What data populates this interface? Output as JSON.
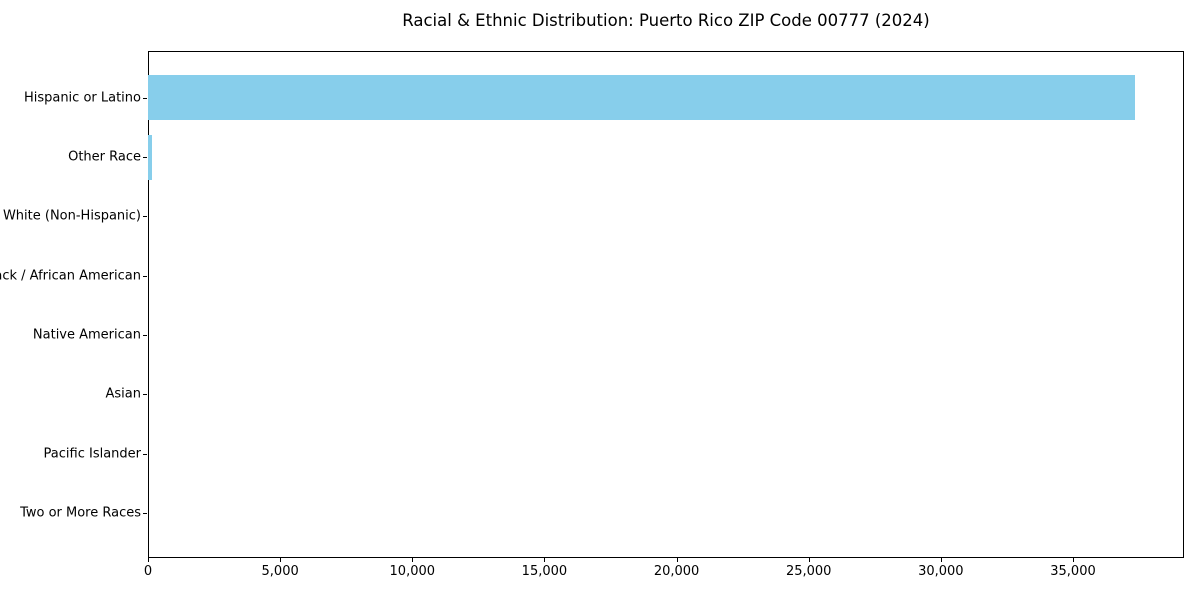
{
  "title": "Racial & Ethnic Distribution: Puerto Rico ZIP Code 00777 (2024)",
  "colors": {
    "bar": "#87CEEB",
    "background": "#ffffff",
    "axis": "#000000",
    "text": "#000000"
  },
  "chart_data": {
    "type": "bar",
    "orientation": "horizontal",
    "title": "Racial & Ethnic Distribution: Puerto Rico ZIP Code 00777 (2024)",
    "xlabel": "",
    "ylabel": "",
    "categories": [
      "Hispanic or Latino",
      "Other Race",
      "White (Non-Hispanic)",
      "Black / African American",
      "Native American",
      "Asian",
      "Pacific Islander",
      "Two or More Races"
    ],
    "values": [
      37340,
      170,
      0,
      0,
      0,
      0,
      0,
      0
    ],
    "bar_color": "#87CEEB",
    "xlim": [
      0,
      39200
    ],
    "x_ticks": [
      0,
      5000,
      10000,
      15000,
      20000,
      25000,
      30000,
      35000
    ],
    "x_tick_labels": [
      "0",
      "5,000",
      "10,000",
      "15,000",
      "20,000",
      "25,000",
      "30,000",
      "35,000"
    ],
    "grid": false,
    "legend": null
  }
}
